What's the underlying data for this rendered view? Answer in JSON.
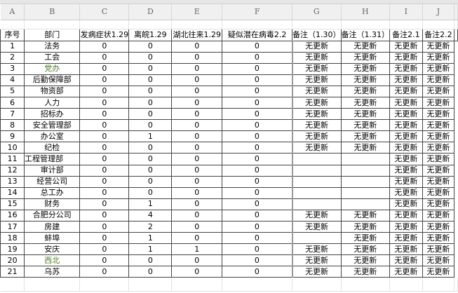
{
  "columns": [
    "A",
    "B",
    "C",
    "D",
    "E",
    "F",
    "G",
    "H",
    "I",
    "J"
  ],
  "headers": [
    "序号",
    "部门",
    "发病症状1.29",
    "离皖1.29",
    "湖北往来1.29",
    "疑似潜在病毒2.2",
    "备注（1.30）",
    "备注（1.31）",
    "备注2.1",
    "备注2.2"
  ],
  "rows": [
    [
      "1",
      "法务",
      "0",
      "0",
      "0",
      "0",
      "无更新",
      "无更新",
      "无更新",
      "无更新"
    ],
    [
      "2",
      "工会",
      "0",
      "0",
      "0",
      "0",
      "无更新",
      "无更新",
      "无更新",
      "无更新"
    ],
    [
      "3",
      "党办",
      "0",
      "0",
      "0",
      "0",
      "无更新",
      "无更新",
      "无更新",
      "无更新"
    ],
    [
      "4",
      "后勤保障部",
      "0",
      "0",
      "0",
      "0",
      "无更新",
      "无更新",
      "无更新",
      "无更新"
    ],
    [
      "5",
      "物资部",
      "0",
      "0",
      "0",
      "0",
      "无更新",
      "无更新",
      "无更新",
      "无更新"
    ],
    [
      "6",
      "人力",
      "0",
      "0",
      "0",
      "0",
      "无更新",
      "无更新",
      "无更新",
      "无更新"
    ],
    [
      "7",
      "招标办",
      "0",
      "0",
      "0",
      "0",
      "无更新",
      "无更新",
      "无更新",
      "无更新"
    ],
    [
      "8",
      "安全管理部",
      "0",
      "0",
      "0",
      "0",
      "无更新",
      "无更新",
      "无更新",
      "无更新"
    ],
    [
      "9",
      "办公室",
      "0",
      "1",
      "0",
      "0",
      "无更新",
      "无更新",
      "无更新",
      "无更新"
    ],
    [
      "10",
      "纪检",
      "0",
      "0",
      "0",
      "0",
      "无更新",
      "无更新",
      "无更新",
      "无更新"
    ],
    [
      "11",
      "工程管理部",
      "0",
      "0",
      "0",
      "0",
      "",
      "",
      "无更新",
      "无更新"
    ],
    [
      "12",
      "审计部",
      "0",
      "0",
      "0",
      "0",
      "",
      "",
      "无更新",
      "无更新"
    ],
    [
      "13",
      "经营公司",
      "0",
      "0",
      "0",
      "0",
      "",
      "",
      "无更新",
      "无更新"
    ],
    [
      "14",
      "总工办",
      "0",
      "0",
      "0",
      "0",
      "",
      "",
      "无更新",
      "无更新"
    ],
    [
      "15",
      "财务",
      "0",
      "1",
      "0",
      "0",
      "",
      "",
      "无更新",
      "无更新"
    ],
    [
      "16",
      "合肥分公司",
      "0",
      "4",
      "0",
      "0",
      "无更新",
      "无更新",
      "无更新",
      "无更新"
    ],
    [
      "17",
      "房建",
      "0",
      "2",
      "0",
      "0",
      "无更新",
      "无更新",
      "无更新",
      "无更新"
    ],
    [
      "18",
      "蚌埠",
      "0",
      "1",
      "0",
      "0",
      "",
      "无更新",
      "无更新",
      "无更新"
    ],
    [
      "19",
      "安庆",
      "0",
      "1",
      "1",
      "0",
      "无更新",
      "无更新",
      "无更新",
      "无更新"
    ],
    [
      "20",
      "西北",
      "0",
      "0",
      "0",
      "0",
      "无更新",
      "无更新",
      "无更新",
      "无更新"
    ],
    [
      "21",
      "乌苏",
      "0",
      "0",
      "0",
      "0",
      "无更新",
      "无更新",
      "无更新",
      "无更新"
    ]
  ],
  "green_rows": [
    "3",
    "20"
  ],
  "colors": {
    "green_text": "#4e7d2c",
    "header_bg": "#f0f0f0"
  }
}
